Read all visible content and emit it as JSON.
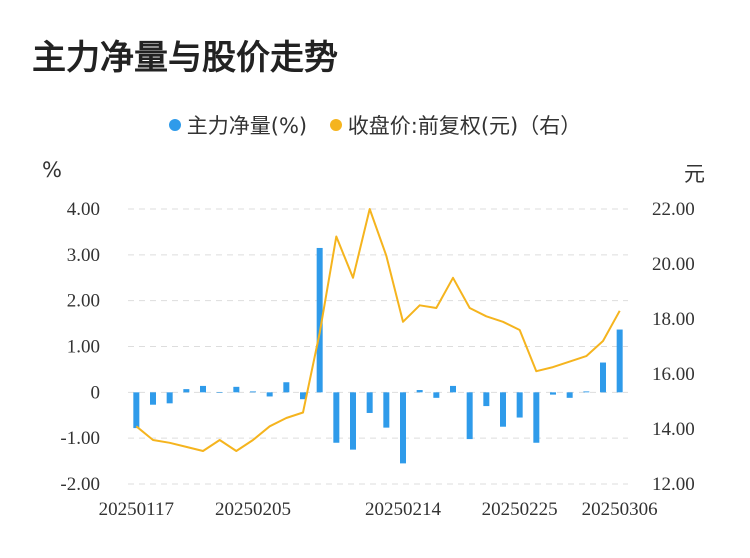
{
  "chart_data": {
    "type": "bar",
    "title": "主力净量与股价走势",
    "legend": [
      {
        "name": "主力净量(%)",
        "color": "#2f9bea"
      },
      {
        "name": "收盘价:前复权(元)（右）",
        "color": "#f5b41e"
      }
    ],
    "left_unit": "%",
    "right_unit": "元",
    "x_tick_labels": [
      "20250117",
      "20250205",
      "20250214",
      "20250225",
      "20250306"
    ],
    "x_tick_indices": [
      0,
      7,
      16,
      23,
      29
    ],
    "y_left": {
      "min": -2,
      "max": 4,
      "ticks": [
        -2,
        -1,
        0,
        1,
        2,
        3,
        4
      ],
      "tick_labels": [
        "-2.00",
        "-1.00",
        "0",
        "1.00",
        "2.00",
        "3.00",
        "4.00"
      ]
    },
    "y_right": {
      "min": 12,
      "max": 22,
      "ticks": [
        12,
        14,
        16,
        18,
        20,
        22
      ],
      "tick_labels": [
        "12.00",
        "14.00",
        "16.00",
        "18.00",
        "20.00",
        "22.00"
      ]
    },
    "legend_position": "top",
    "grid": true,
    "series": [
      {
        "name": "主力净量(%)",
        "type": "bar",
        "values": [
          -0.78,
          -0.27,
          -0.24,
          0.07,
          0.14,
          0,
          0.12,
          0.02,
          -0.09,
          0.22,
          -0.15,
          3.15,
          -1.1,
          -1.25,
          -0.45,
          -0.77,
          -1.55,
          0.05,
          -0.12,
          0.14,
          -1.02,
          -0.3,
          -0.75,
          -0.55,
          -1.1,
          -0.05,
          -0.12,
          0.02,
          0.65,
          1.37
        ]
      },
      {
        "name": "收盘价:前复权(元)（右）",
        "type": "line",
        "values": [
          14.1,
          13.6,
          13.5,
          13.35,
          13.2,
          13.6,
          13.2,
          13.6,
          14.1,
          14.4,
          14.6,
          17.5,
          21.0,
          19.5,
          22.0,
          20.3,
          17.9,
          18.5,
          18.4,
          19.5,
          18.4,
          18.1,
          17.9,
          17.6,
          16.1,
          16.25,
          16.45,
          16.65,
          17.2,
          18.3
        ]
      }
    ]
  }
}
